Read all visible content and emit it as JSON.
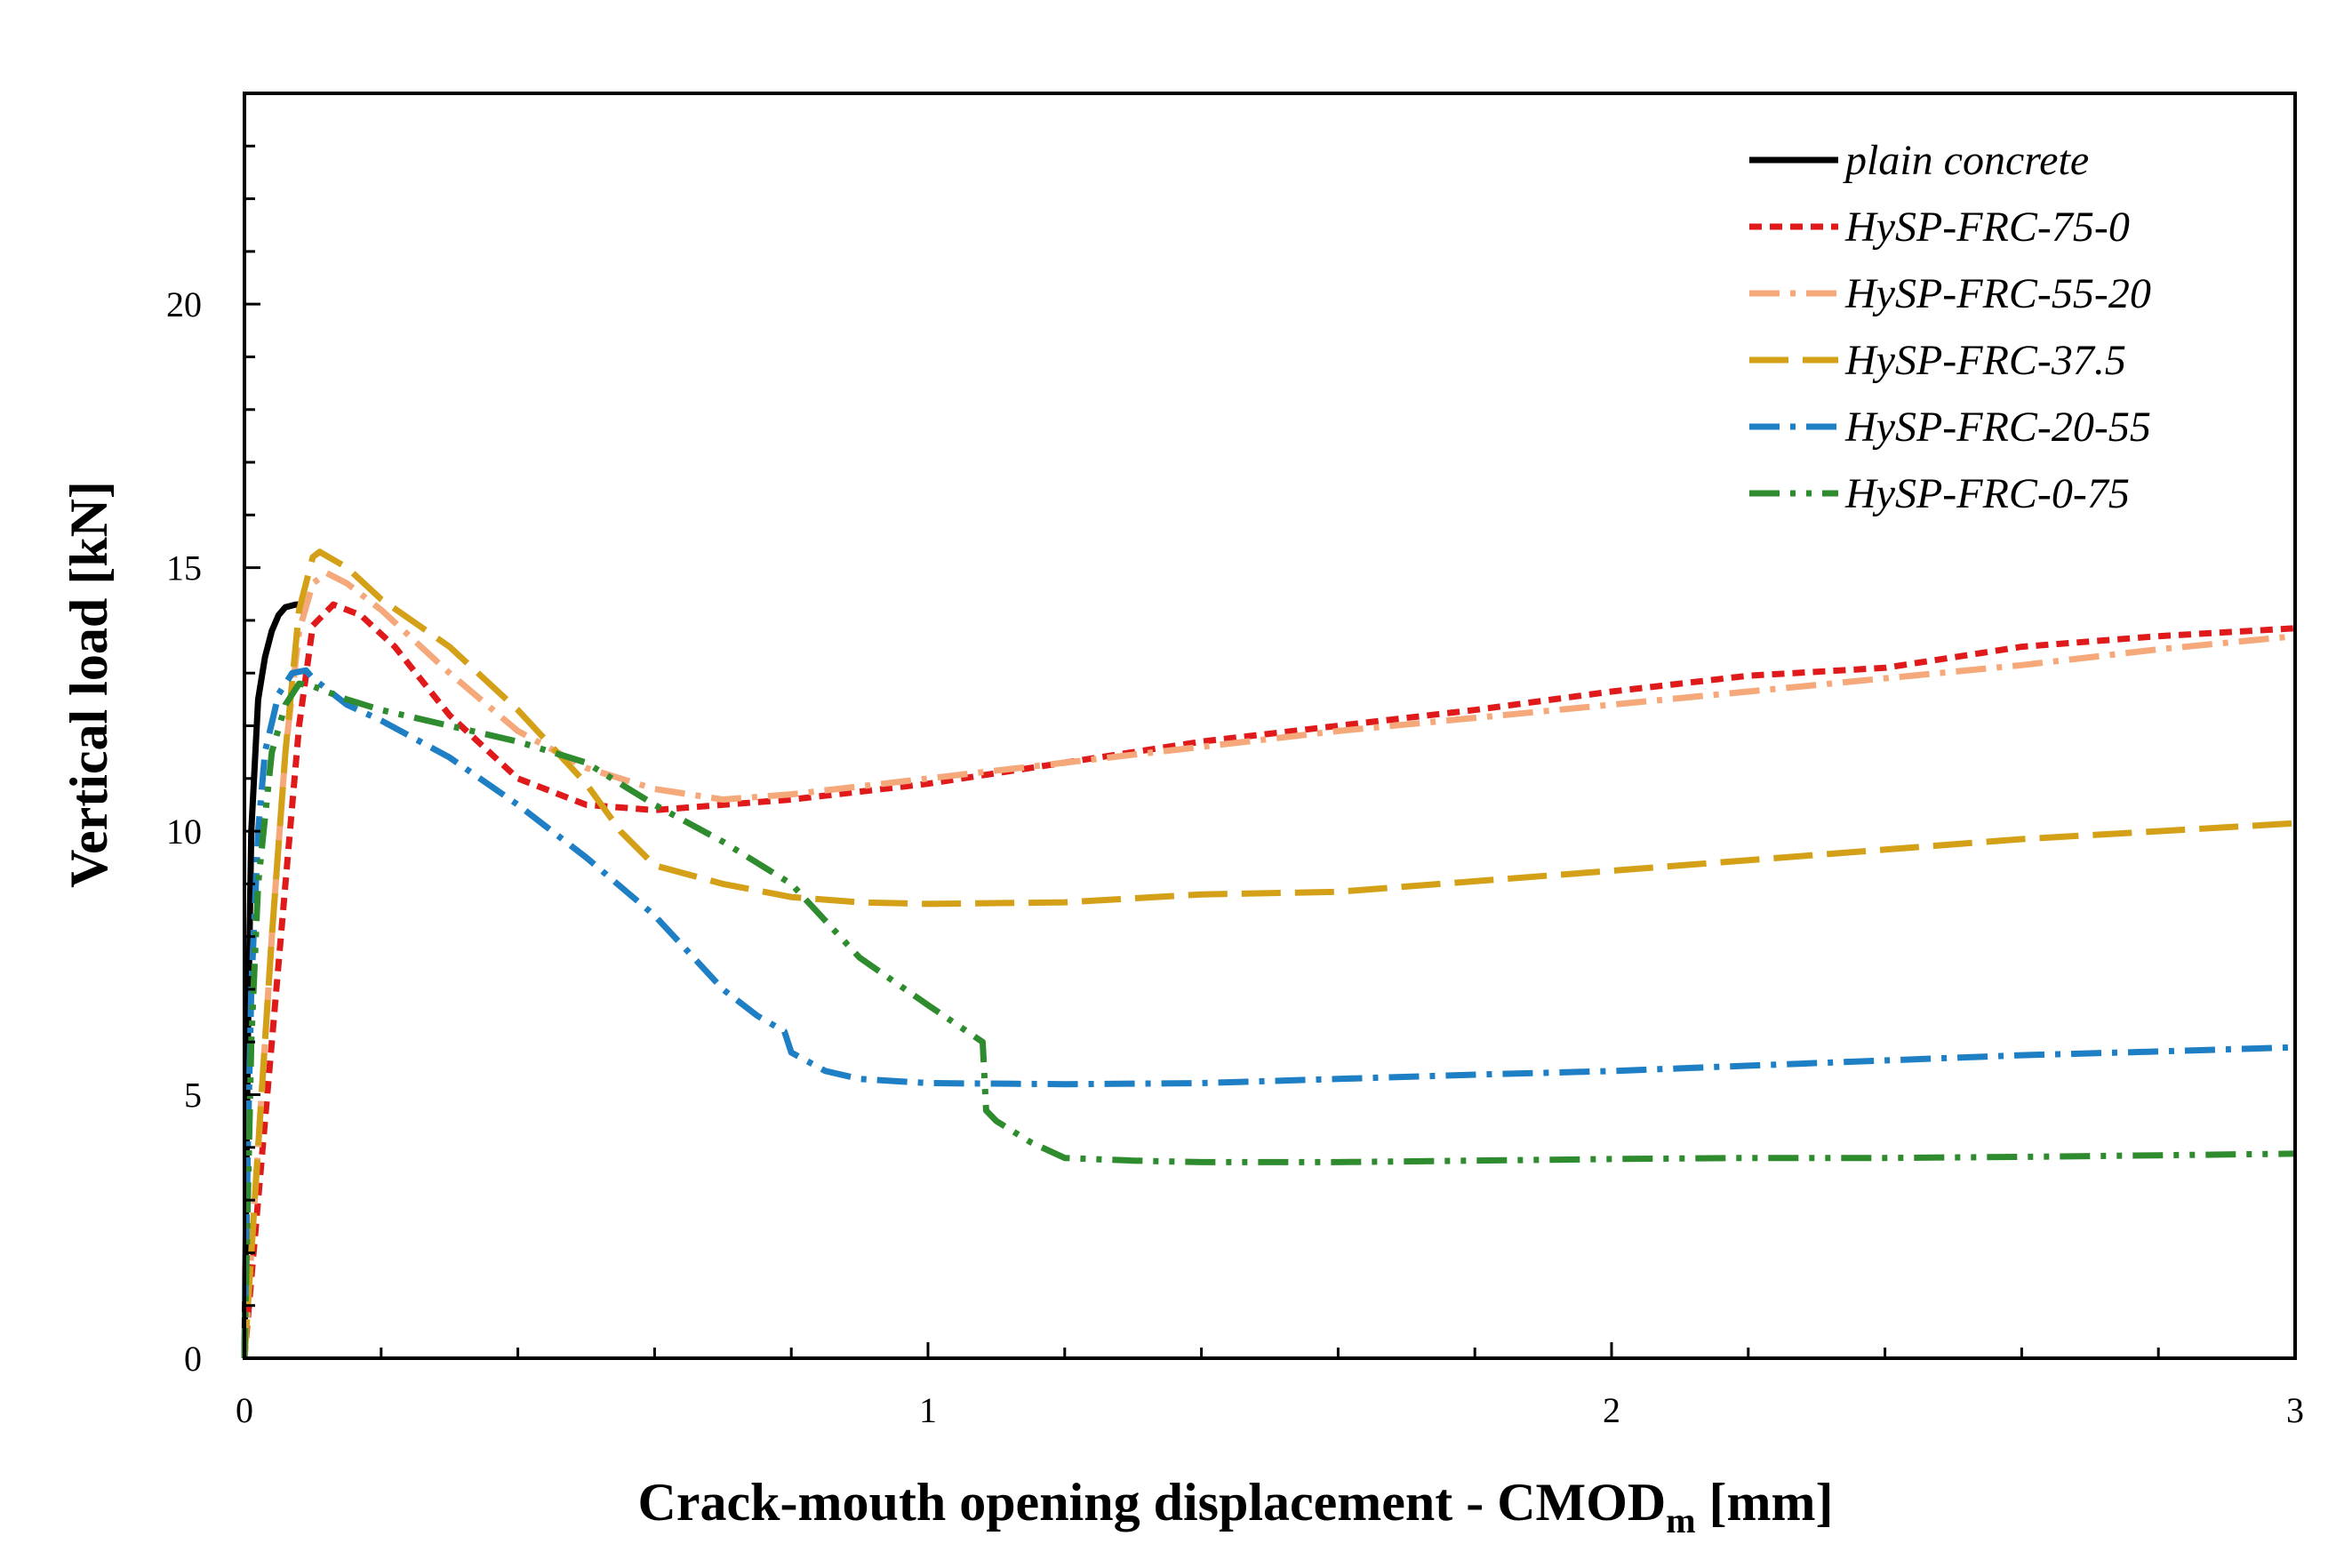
{
  "chart_data": {
    "type": "line",
    "xlabel": "Crack-mouth opening displacement - CMOD",
    "xlabel_subscript": "m",
    "xlabel_unit": " [mm]",
    "ylabel": "Vertical load [kN]",
    "xlim": [
      0,
      3
    ],
    "ylim": [
      0,
      24
    ],
    "xticks": [
      0,
      1,
      2,
      3
    ],
    "yticks": [
      0,
      5,
      10,
      15,
      20
    ],
    "grid": false,
    "legend_position": "top-right",
    "series": [
      {
        "name": "plain concrete",
        "color": "#000000",
        "dash": "solid",
        "x": [
          0,
          0.005,
          0.01,
          0.02,
          0.03,
          0.04,
          0.05,
          0.06,
          0.075,
          0.08
        ],
        "y": [
          0,
          6,
          10,
          12.5,
          13.3,
          13.8,
          14.1,
          14.25,
          14.3,
          14.3
        ]
      },
      {
        "name": "HySP-FRC-75-0",
        "color": "#e01a1a",
        "dash": "short-dash",
        "x": [
          0,
          0.02,
          0.04,
          0.06,
          0.08,
          0.1,
          0.13,
          0.17,
          0.22,
          0.3,
          0.4,
          0.5,
          0.6,
          0.7,
          0.8,
          0.9,
          1.0,
          1.2,
          1.4,
          1.6,
          1.8,
          2.0,
          2.2,
          2.4,
          2.6,
          2.8,
          3.0
        ],
        "y": [
          0,
          3,
          6,
          9,
          12,
          13.9,
          14.3,
          14.1,
          13.5,
          12.2,
          11.0,
          10.5,
          10.4,
          10.5,
          10.6,
          10.75,
          10.9,
          11.3,
          11.7,
          12.0,
          12.3,
          12.65,
          12.95,
          13.1,
          13.5,
          13.7,
          13.85
        ]
      },
      {
        "name": "HySP-FRC-55-20",
        "color": "#f5a87a",
        "dash": "dash-dot",
        "x": [
          0,
          0.02,
          0.04,
          0.06,
          0.08,
          0.1,
          0.12,
          0.15,
          0.2,
          0.3,
          0.4,
          0.5,
          0.6,
          0.7,
          0.8,
          0.9,
          1.0,
          1.2,
          1.4,
          1.6,
          1.8,
          2.0,
          2.2,
          2.4,
          2.6,
          2.8,
          3.0
        ],
        "y": [
          0,
          4,
          8,
          11.5,
          13.8,
          14.7,
          14.9,
          14.7,
          14.2,
          13.0,
          11.9,
          11.2,
          10.8,
          10.6,
          10.7,
          10.85,
          11.0,
          11.3,
          11.6,
          11.9,
          12.15,
          12.4,
          12.65,
          12.9,
          13.15,
          13.45,
          13.7
        ]
      },
      {
        "name": "HySP-FRC-37.5",
        "color": "#d4a017",
        "dash": "long-dash",
        "x": [
          0,
          0.02,
          0.04,
          0.06,
          0.08,
          0.1,
          0.11,
          0.15,
          0.2,
          0.3,
          0.4,
          0.5,
          0.55,
          0.6,
          0.7,
          0.8,
          0.9,
          1.0,
          1.2,
          1.4,
          1.6,
          1.8,
          2.0,
          2.2,
          2.4,
          2.6,
          2.8,
          3.0
        ],
        "y": [
          0,
          4,
          8,
          11.5,
          14.2,
          15.2,
          15.3,
          15.0,
          14.4,
          13.5,
          12.3,
          10.9,
          10.0,
          9.35,
          9.0,
          8.75,
          8.65,
          8.62,
          8.65,
          8.8,
          8.85,
          9.05,
          9.25,
          9.45,
          9.65,
          9.85,
          10.0,
          10.15
        ]
      },
      {
        "name": "HySP-FRC-20-55",
        "color": "#1f7fc4",
        "dash": "dash-dot",
        "x": [
          0,
          0.005,
          0.01,
          0.02,
          0.03,
          0.05,
          0.07,
          0.09,
          0.1,
          0.15,
          0.2,
          0.3,
          0.4,
          0.5,
          0.6,
          0.7,
          0.75,
          0.79,
          0.8,
          0.85,
          0.9,
          1.0,
          1.2,
          1.4,
          1.6,
          1.8,
          2.0,
          2.2,
          2.4,
          2.6,
          2.8,
          3.0
        ],
        "y": [
          0,
          4,
          7,
          10,
          11.5,
          12.6,
          13.0,
          13.05,
          12.9,
          12.4,
          12.1,
          11.4,
          10.5,
          9.5,
          8.4,
          7.0,
          6.5,
          6.2,
          5.8,
          5.45,
          5.3,
          5.22,
          5.2,
          5.22,
          5.3,
          5.38,
          5.45,
          5.55,
          5.65,
          5.75,
          5.82,
          5.9
        ]
      },
      {
        "name": "HySP-FRC-0-75",
        "color": "#2e8b2e",
        "dash": "dash-dot-dot",
        "x": [
          0,
          0.005,
          0.01,
          0.02,
          0.04,
          0.06,
          0.08,
          0.1,
          0.15,
          0.2,
          0.3,
          0.4,
          0.5,
          0.6,
          0.7,
          0.8,
          0.85,
          0.9,
          1.0,
          1.08,
          1.085,
          1.1,
          1.15,
          1.2,
          1.3,
          1.4,
          1.6,
          1.8,
          2.0,
          2.2,
          2.4,
          2.6,
          2.8,
          3.0
        ],
        "y": [
          0,
          3,
          6,
          9,
          11.5,
          12.4,
          12.8,
          12.75,
          12.5,
          12.3,
          12.0,
          11.7,
          11.3,
          10.5,
          9.8,
          9.0,
          8.3,
          7.6,
          6.7,
          6.0,
          4.7,
          4.5,
          4.1,
          3.8,
          3.75,
          3.72,
          3.72,
          3.75,
          3.78,
          3.8,
          3.8,
          3.82,
          3.85,
          3.88
        ]
      }
    ]
  }
}
